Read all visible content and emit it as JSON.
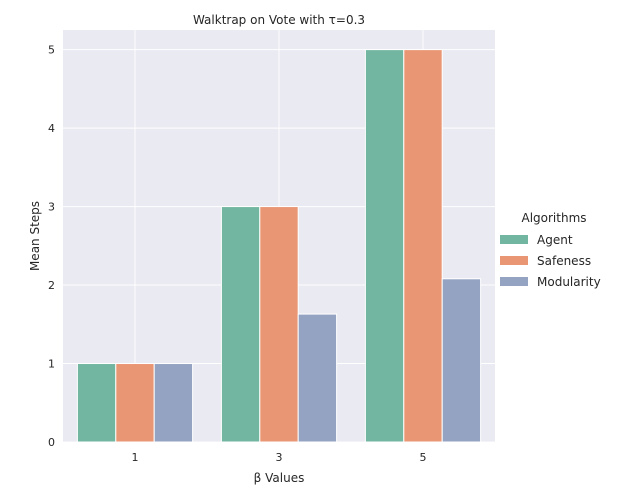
{
  "chart_data": {
    "type": "bar",
    "title": "Walktrap on Vote with τ=0.3",
    "xlabel": "β Values",
    "ylabel": "Mean Steps",
    "categories": [
      "1",
      "3",
      "5"
    ],
    "series": [
      {
        "name": "Agent",
        "values": [
          1,
          3,
          5
        ],
        "color": "#72b6a1"
      },
      {
        "name": "Safeness",
        "values": [
          1,
          3,
          5
        ],
        "color": "#e99675"
      },
      {
        "name": "Modularity",
        "values": [
          1,
          1.63,
          2.08
        ],
        "color": "#95a3c3"
      }
    ],
    "ylim": [
      0,
      5.25
    ],
    "yticks": [
      0,
      1,
      2,
      3,
      4,
      5
    ],
    "grid": true,
    "legend": {
      "title": "Algorithms",
      "placement": "right"
    }
  }
}
